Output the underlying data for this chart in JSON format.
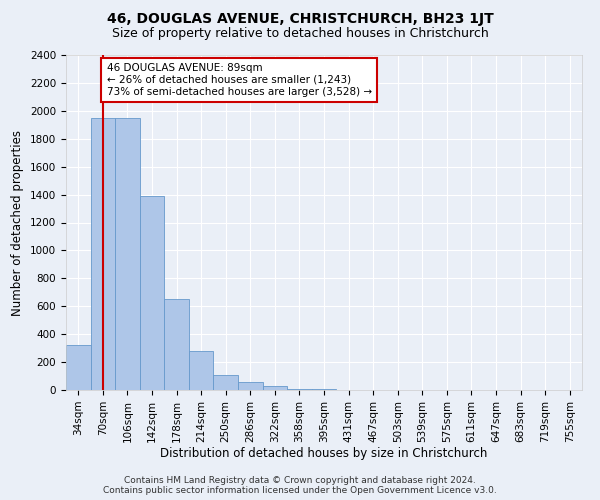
{
  "title": "46, DOUGLAS AVENUE, CHRISTCHURCH, BH23 1JT",
  "subtitle": "Size of property relative to detached houses in Christchurch",
  "xlabel": "Distribution of detached houses by size in Christchurch",
  "ylabel": "Number of detached properties",
  "bar_labels": [
    "34sqm",
    "70sqm",
    "106sqm",
    "142sqm",
    "178sqm",
    "214sqm",
    "250sqm",
    "286sqm",
    "322sqm",
    "358sqm",
    "395sqm",
    "431sqm",
    "467sqm",
    "503sqm",
    "539sqm",
    "575sqm",
    "611sqm",
    "647sqm",
    "683sqm",
    "719sqm",
    "755sqm"
  ],
  "bar_values": [
    320,
    1950,
    1950,
    1390,
    650,
    280,
    105,
    60,
    30,
    10,
    5,
    0,
    0,
    0,
    0,
    0,
    0,
    0,
    0,
    0,
    0
  ],
  "bar_color": "#aec6e8",
  "bar_edge_color": "#6699cc",
  "property_line_x": 1.0,
  "annotation_text": "46 DOUGLAS AVENUE: 89sqm\n← 26% of detached houses are smaller (1,243)\n73% of semi-detached houses are larger (3,528) →",
  "annotation_box_color": "#ffffff",
  "annotation_box_edge": "#cc0000",
  "vline_color": "#cc0000",
  "ylim": [
    0,
    2400
  ],
  "yticks": [
    0,
    200,
    400,
    600,
    800,
    1000,
    1200,
    1400,
    1600,
    1800,
    2000,
    2200,
    2400
  ],
  "footnote1": "Contains HM Land Registry data © Crown copyright and database right 2024.",
  "footnote2": "Contains public sector information licensed under the Open Government Licence v3.0.",
  "background_color": "#eaeff7",
  "plot_background": "#eaeff7",
  "grid_color": "#ffffff",
  "title_fontsize": 10,
  "subtitle_fontsize": 9,
  "xlabel_fontsize": 8.5,
  "ylabel_fontsize": 8.5,
  "tick_fontsize": 7.5,
  "annotation_fontsize": 7.5,
  "footnote_fontsize": 6.5
}
